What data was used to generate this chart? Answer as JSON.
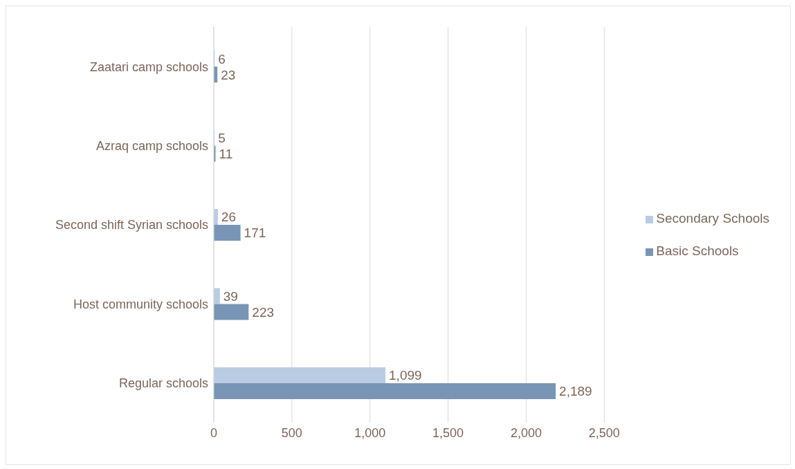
{
  "chart_data": {
    "type": "bar",
    "orientation": "horizontal",
    "categories": [
      "Zaatari camp schools",
      "Azraq camp schools",
      "Second shift Syrian schools",
      "Host community schools",
      "Regular schools"
    ],
    "series": [
      {
        "name": "Secondary Schools",
        "color": "#b9cce3",
        "values": [
          6,
          5,
          26,
          39,
          1099
        ],
        "value_labels": [
          "6",
          "5",
          "26",
          "39",
          "1,099"
        ]
      },
      {
        "name": "Basic Schools",
        "color": "#7895b5",
        "values": [
          23,
          11,
          171,
          223,
          2189
        ],
        "value_labels": [
          "23",
          "11",
          "171",
          "223",
          "2,189"
        ]
      }
    ],
    "xlim": [
      0,
      2500
    ],
    "xticks": [
      0,
      500,
      {
        "value": 1000,
        "label": "1,000"
      },
      {
        "value": 1500,
        "label": "1,500"
      },
      {
        "value": 2000,
        "label": "2,000"
      },
      {
        "value": 2500,
        "label": "2,500"
      }
    ],
    "grid": "x",
    "legend": "right"
  }
}
